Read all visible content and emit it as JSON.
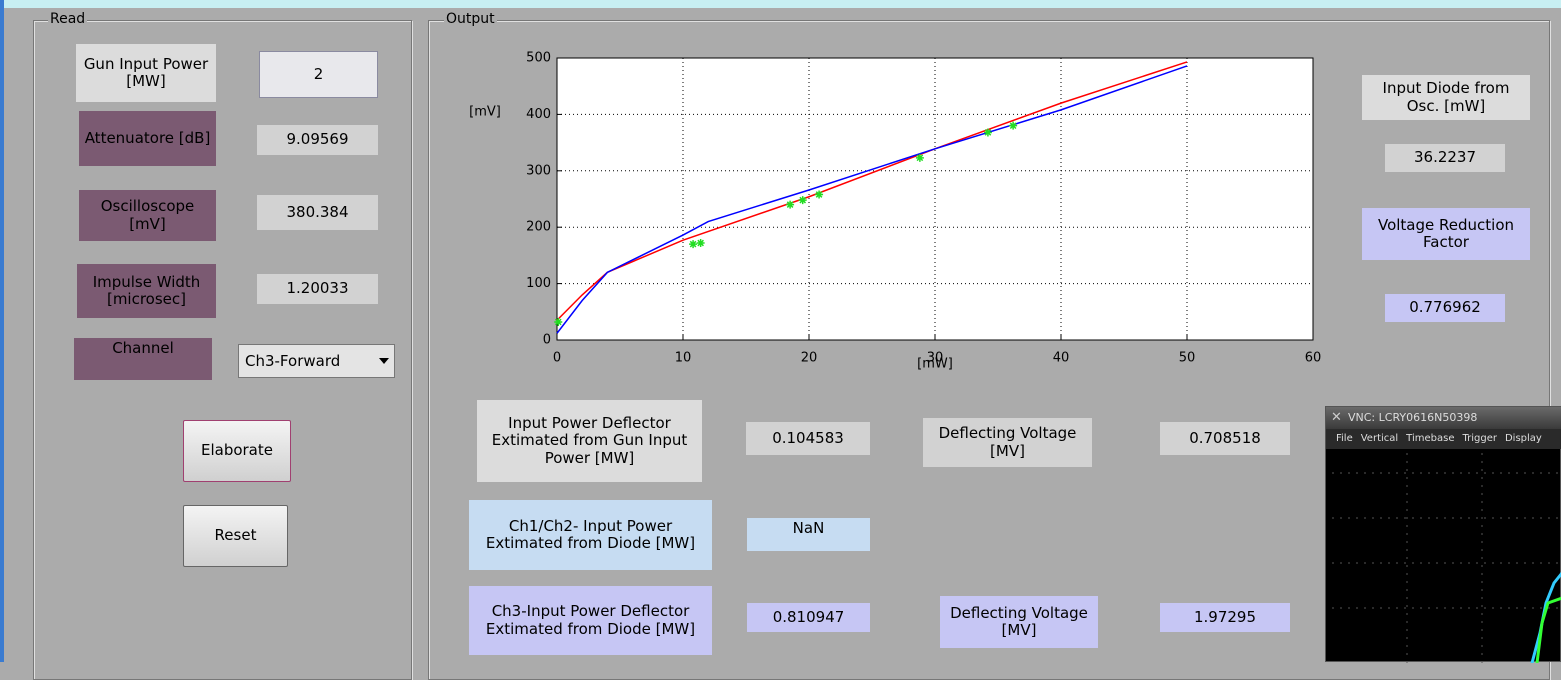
{
  "read_panel": {
    "title": "Read",
    "gun_input_power": {
      "label": "Gun Input Power [MW]",
      "value": "2"
    },
    "attenuatore": {
      "label": "Attenuatore [dB]",
      "value": "9.09569"
    },
    "oscilloscope": {
      "label": "Oscilloscope [mV]",
      "value": "380.384"
    },
    "impulse_width": {
      "label": "Impulse Width [microsec]",
      "value": "1.20033"
    },
    "channel": {
      "label": "Channel",
      "value": "Ch3-Forward"
    },
    "buttons": [
      "Elaborate",
      "Reset"
    ]
  },
  "output_panel": {
    "title": "Output",
    "chart_data": {
      "type": "line",
      "xlabel": "[mW]",
      "ylabel": "[mV]",
      "xlim": [
        0,
        60
      ],
      "ylim": [
        0,
        500
      ],
      "xticks": [
        0,
        10,
        20,
        30,
        40,
        50,
        60
      ],
      "yticks": [
        0,
        100,
        200,
        300,
        400,
        500
      ],
      "grid": true,
      "series": [
        {
          "color": "#ff0000",
          "x": [
            0,
            2,
            4,
            10,
            20,
            30,
            40,
            50
          ],
          "values": [
            35,
            80,
            120,
            177,
            254,
            339,
            420,
            493
          ]
        },
        {
          "color": "#0000ff",
          "x": [
            0,
            2,
            4,
            10,
            12,
            20,
            30,
            40,
            50
          ],
          "values": [
            12,
            70,
            120,
            186,
            210,
            266,
            339,
            408,
            486
          ]
        },
        {
          "color": "#22dd22",
          "marker": "star",
          "x": [
            0.1,
            10.8,
            11.4,
            18.5,
            19.5,
            20.8,
            28.8,
            34.2,
            36.2
          ],
          "values": [
            32,
            170,
            172,
            240,
            248,
            258,
            323,
            368,
            380
          ]
        }
      ]
    },
    "input_diode": {
      "label": "Input Diode from Osc. [mW]",
      "value": "36.2237"
    },
    "voltage_reduction": {
      "label": "Voltage Reduction Factor",
      "value": "0.776962"
    },
    "gun_deflector": {
      "label": "Input Power Deflector Extimated from Gun Input Power [MW]",
      "value": "0.104583",
      "voltage_label": "Deflecting Voltage [MV]",
      "voltage_value": "0.708518"
    },
    "ch12_diode": {
      "label": "Ch1/Ch2- Input Power Extimated from Diode [MW]",
      "value": "NaN"
    },
    "ch3_diode": {
      "label": "Ch3-Input Power Deflector Extimated from Diode [MW]",
      "value": "0.810947",
      "voltage_label": "Deflecting Voltage [MV]",
      "voltage_value": "1.97295"
    }
  },
  "vnc_window": {
    "title": "VNC: LCRY0616N50398",
    "menu": [
      "File",
      "Vertical",
      "Timebase",
      "Trigger",
      "Display"
    ]
  }
}
